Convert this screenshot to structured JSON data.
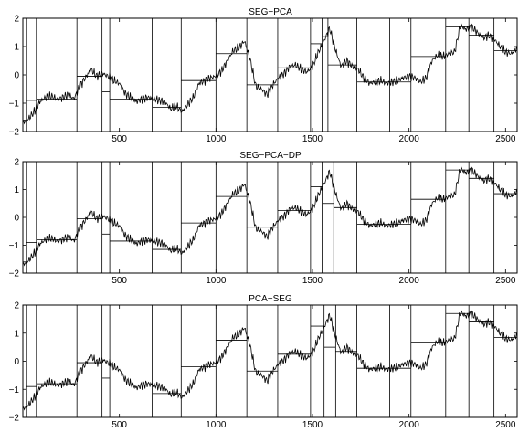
{
  "chart_data": [
    {
      "type": "line",
      "title": "SEG−PCA",
      "xlim": [
        0,
        2560
      ],
      "ylim": [
        -2,
        2
      ],
      "x_ticks": [
        500,
        1000,
        1500,
        2000,
        2500
      ],
      "x_tick_labels": [
        "500",
        "1000",
        "1500",
        "2000",
        "2500"
      ],
      "y_ticks": [
        2,
        1,
        0,
        -1,
        -2
      ],
      "y_tick_labels": [
        "2",
        "1",
        "0",
        "−1",
        "−2"
      ],
      "breakpoints": [
        20,
        70,
        280,
        410,
        450,
        670,
        820,
        1000,
        1160,
        1320,
        1490,
        1550,
        1580,
        1730,
        1900,
        2010,
        2190,
        2310,
        2440
      ],
      "segment_means": [
        -1.6,
        -0.9,
        -0.85,
        -0.05,
        -0.6,
        -0.85,
        -1.15,
        -0.2,
        0.75,
        -0.35,
        0.25,
        1.1,
        1.35,
        0.35,
        -0.25,
        -0.25,
        0.65,
        1.7,
        1.4,
        0.85
      ],
      "series": [
        {
          "values": [
            -1.7,
            -1.55,
            -1.3,
            -0.95,
            -0.8,
            -0.75,
            -0.85,
            -0.8,
            -0.7,
            -0.85,
            -0.4,
            -0.1,
            0.2,
            -0.05,
            0.05,
            -0.05,
            -0.2,
            -0.3,
            -0.65,
            -0.8,
            -0.95,
            -0.85,
            -0.8,
            -0.85,
            -0.9,
            -0.95,
            -1.2,
            -1.1,
            -1.3,
            -1.05,
            -0.8,
            -0.3,
            -0.2,
            -0.1,
            -0.05,
            0.15,
            0.5,
            0.85,
            0.95,
            1.2,
            0.55,
            -0.4,
            -0.5,
            -0.7,
            -0.35,
            -0.1,
            0.05,
            0.3,
            0.35,
            0.2,
            0.1,
            0.3,
            0.8,
            1.2,
            1.65,
            0.9,
            0.3,
            0.5,
            0.3,
            0.2,
            -0.1,
            -0.3,
            -0.25,
            -0.2,
            -0.3,
            -0.25,
            -0.2,
            -0.1,
            -0.05,
            -0.1,
            -0.25,
            -0.1,
            0.5,
            0.7,
            0.65,
            0.75,
            0.8,
            1.75,
            1.6,
            1.7,
            1.5,
            1.3,
            1.4,
            1.25,
            1.0,
            0.8,
            0.75,
            0.95
          ]
        }
      ]
    },
    {
      "type": "line",
      "title": "SEG−PCA−DP",
      "xlim": [
        0,
        2560
      ],
      "ylim": [
        -2,
        2
      ],
      "x_ticks": [
        500,
        1000,
        1500,
        2000,
        2500
      ],
      "x_tick_labels": [
        "500",
        "1000",
        "1500",
        "2000",
        "2500"
      ],
      "y_ticks": [
        2,
        1,
        0,
        -1,
        -2
      ],
      "y_tick_labels": [
        "2",
        "1",
        "0",
        "−1",
        "−2"
      ],
      "breakpoints": [
        20,
        70,
        280,
        410,
        450,
        670,
        820,
        1000,
        1160,
        1320,
        1490,
        1550,
        1610,
        1730,
        2010,
        2190,
        2310,
        2440
      ],
      "segment_means": [
        -1.6,
        -0.9,
        -0.8,
        -0.05,
        -0.6,
        -0.85,
        -1.15,
        -0.2,
        0.75,
        -0.35,
        0.25,
        1.1,
        0.5,
        0.35,
        -0.25,
        0.65,
        1.7,
        1.4,
        0.85
      ],
      "series": [
        {
          "values": [
            -1.7,
            -1.55,
            -1.3,
            -0.95,
            -0.8,
            -0.75,
            -0.85,
            -0.8,
            -0.7,
            -0.85,
            -0.4,
            -0.1,
            0.2,
            -0.05,
            0.05,
            -0.05,
            -0.2,
            -0.3,
            -0.65,
            -0.8,
            -0.95,
            -0.85,
            -0.8,
            -0.85,
            -0.9,
            -0.95,
            -1.2,
            -1.1,
            -1.3,
            -1.05,
            -0.8,
            -0.3,
            -0.2,
            -0.1,
            -0.05,
            0.15,
            0.5,
            0.85,
            0.95,
            1.2,
            0.55,
            -0.4,
            -0.5,
            -0.7,
            -0.35,
            -0.1,
            0.05,
            0.3,
            0.35,
            0.2,
            0.1,
            0.3,
            0.8,
            1.2,
            1.65,
            0.9,
            0.3,
            0.5,
            0.3,
            0.2,
            -0.1,
            -0.3,
            -0.25,
            -0.2,
            -0.3,
            -0.25,
            -0.2,
            -0.1,
            -0.05,
            -0.1,
            -0.25,
            -0.1,
            0.5,
            0.7,
            0.65,
            0.75,
            0.8,
            1.75,
            1.6,
            1.7,
            1.5,
            1.3,
            1.4,
            1.25,
            1.0,
            0.8,
            0.75,
            0.95
          ]
        }
      ]
    },
    {
      "type": "line",
      "title": "PCA−SEG",
      "xlim": [
        0,
        2560
      ],
      "ylim": [
        -2,
        2
      ],
      "x_ticks": [
        500,
        1000,
        1500,
        2000,
        2500
      ],
      "x_tick_labels": [
        "500",
        "1000",
        "1500",
        "2000",
        "2500"
      ],
      "y_ticks": [
        2,
        1,
        0,
        -1,
        -2
      ],
      "y_tick_labels": [
        "2",
        "1",
        "0",
        "−1",
        "−2"
      ],
      "breakpoints": [
        20,
        70,
        280,
        410,
        450,
        670,
        820,
        1000,
        1160,
        1320,
        1490,
        1560,
        1620,
        1730,
        1900,
        2010,
        2190,
        2310,
        2440
      ],
      "segment_means": [
        -1.6,
        -0.9,
        -0.8,
        -0.05,
        -0.6,
        -0.85,
        -1.15,
        -0.2,
        0.75,
        -0.35,
        0.25,
        1.25,
        0.5,
        0.35,
        -0.25,
        -0.25,
        0.65,
        1.7,
        1.4,
        0.85
      ],
      "series": [
        {
          "values": [
            -1.7,
            -1.55,
            -1.3,
            -0.95,
            -0.8,
            -0.75,
            -0.85,
            -0.8,
            -0.7,
            -0.85,
            -0.4,
            -0.1,
            0.2,
            -0.05,
            0.05,
            -0.05,
            -0.2,
            -0.3,
            -0.65,
            -0.8,
            -0.95,
            -0.85,
            -0.8,
            -0.85,
            -0.9,
            -0.95,
            -1.2,
            -1.1,
            -1.3,
            -1.05,
            -0.8,
            -0.3,
            -0.2,
            -0.1,
            -0.05,
            0.15,
            0.5,
            0.85,
            0.95,
            1.2,
            0.55,
            -0.4,
            -0.5,
            -0.7,
            -0.35,
            -0.1,
            0.05,
            0.3,
            0.35,
            0.2,
            0.1,
            0.3,
            0.8,
            1.2,
            1.65,
            0.9,
            0.3,
            0.5,
            0.3,
            0.2,
            -0.1,
            -0.3,
            -0.25,
            -0.2,
            -0.3,
            -0.25,
            -0.2,
            -0.1,
            -0.05,
            -0.1,
            -0.25,
            -0.1,
            0.5,
            0.7,
            0.65,
            0.75,
            0.8,
            1.75,
            1.6,
            1.7,
            1.5,
            1.3,
            1.4,
            1.25,
            1.0,
            0.8,
            0.75,
            0.95
          ]
        }
      ]
    }
  ]
}
